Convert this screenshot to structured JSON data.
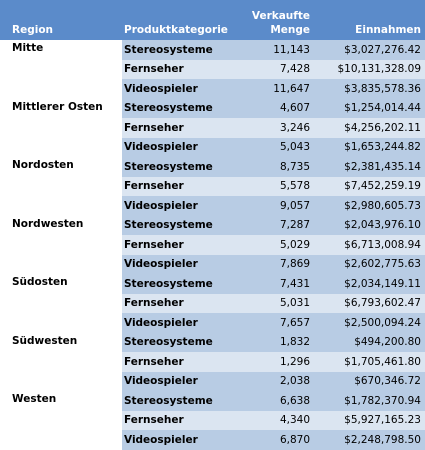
{
  "colors": {
    "header_bg": "#5b8bca",
    "band_dark": "#b8cce4",
    "band_light": "#dbe5f1",
    "region_bg": "#ffffff",
    "header_text": "#ffffff"
  },
  "headers": {
    "region": "Region",
    "category": "Produktkategorie",
    "qty_line1": "Verkaufte",
    "qty_line2": "Menge",
    "revenue": "Einnahmen"
  },
  "regions": [
    {
      "name": "Mitte",
      "rows": [
        {
          "category": "Stereosysteme",
          "qty": "11,143",
          "revenue": "$3,027,276.42"
        },
        {
          "category": "Fernseher",
          "qty": "7,428",
          "revenue": "$10,131,328.09"
        },
        {
          "category": "Videospieler",
          "qty": "11,647",
          "revenue": "$3,835,578.36"
        }
      ]
    },
    {
      "name": "Mittlerer Osten",
      "rows": [
        {
          "category": "Stereosysteme",
          "qty": "4,607",
          "revenue": "$1,254,014.44"
        },
        {
          "category": "Fernseher",
          "qty": "3,246",
          "revenue": "$4,256,202.11"
        },
        {
          "category": "Videospieler",
          "qty": "5,043",
          "revenue": "$1,653,244.82"
        }
      ]
    },
    {
      "name": "Nordosten",
      "rows": [
        {
          "category": "Stereosysteme",
          "qty": "8,735",
          "revenue": "$2,381,435.14"
        },
        {
          "category": "Fernseher",
          "qty": "5,578",
          "revenue": "$7,452,259.19"
        },
        {
          "category": "Videospieler",
          "qty": "9,057",
          "revenue": "$2,980,605.73"
        }
      ]
    },
    {
      "name": "Nordwesten",
      "rows": [
        {
          "category": "Stereosysteme",
          "qty": "7,287",
          "revenue": "$2,043,976.10"
        },
        {
          "category": "Fernseher",
          "qty": "5,029",
          "revenue": "$6,713,008.94"
        },
        {
          "category": "Videospieler",
          "qty": "7,869",
          "revenue": "$2,602,775.63"
        }
      ]
    },
    {
      "name": "Südosten",
      "rows": [
        {
          "category": "Stereosysteme",
          "qty": "7,431",
          "revenue": "$2,034,149.11"
        },
        {
          "category": "Fernseher",
          "qty": "5,031",
          "revenue": "$6,793,602.47"
        },
        {
          "category": "Videospieler",
          "qty": "7,657",
          "revenue": "$2,500,094.24"
        }
      ]
    },
    {
      "name": "Südwesten",
      "rows": [
        {
          "category": "Stereosysteme",
          "qty": "1,832",
          "revenue": "$494,200.80"
        },
        {
          "category": "Fernseher",
          "qty": "1,296",
          "revenue": "$1,705,461.80"
        },
        {
          "category": "Videospieler",
          "qty": "2,038",
          "revenue": "$670,346.72"
        }
      ]
    },
    {
      "name": "Westen",
      "rows": [
        {
          "category": "Stereosysteme",
          "qty": "6,638",
          "revenue": "$1,782,370.94"
        },
        {
          "category": "Fernseher",
          "qty": "4,340",
          "revenue": "$5,927,165.23"
        },
        {
          "category": "Videospieler",
          "qty": "6,870",
          "revenue": "$2,248,798.50"
        }
      ]
    }
  ]
}
